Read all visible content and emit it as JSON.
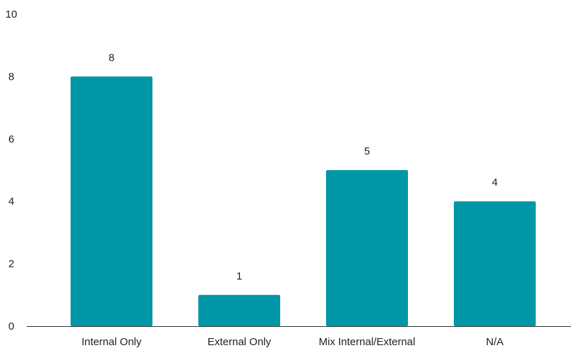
{
  "chart_data": {
    "type": "bar",
    "title": "",
    "xlabel": "",
    "ylabel": "",
    "categories": [
      "Internal Only",
      "External Only",
      "Mix Internal/External",
      "N/A"
    ],
    "values": [
      8,
      1,
      5,
      4
    ],
    "data_labels": [
      "8",
      "1",
      "5",
      "4"
    ],
    "ylim": [
      0,
      10
    ],
    "yticks": [
      0,
      2,
      4,
      6,
      8,
      10
    ],
    "grid": false,
    "legend": "none",
    "bar_color": "#0097a7",
    "axis_color": "#333333"
  }
}
